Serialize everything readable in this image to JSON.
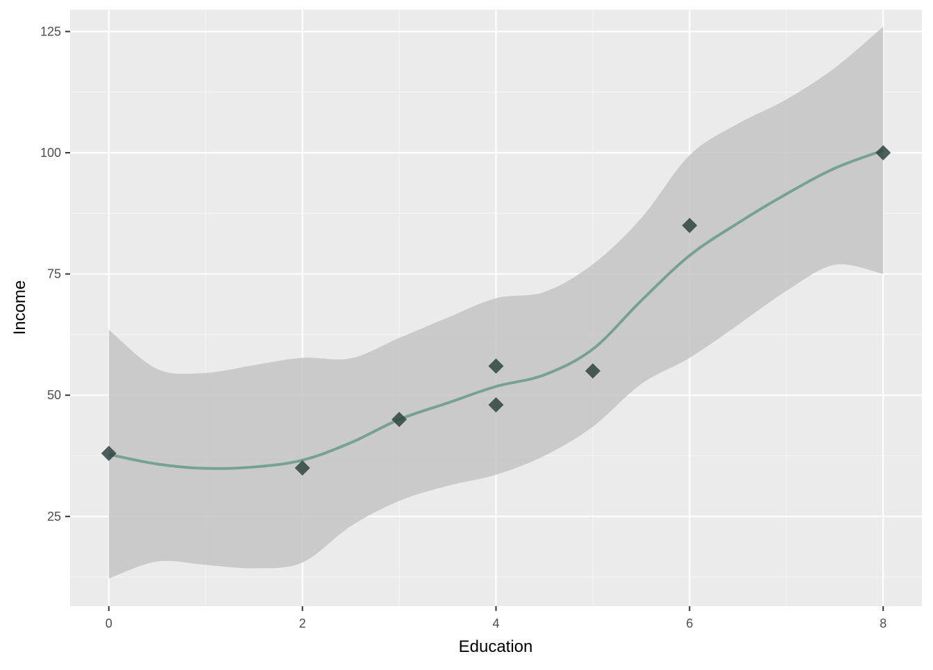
{
  "chart_data": {
    "type": "scatter",
    "xlabel": "Education",
    "ylabel": "Income",
    "xlim": [
      -0.4,
      8.4
    ],
    "ylim": [
      6.5,
      129.5
    ],
    "x_ticks": [
      0,
      2,
      4,
      6,
      8
    ],
    "x_tick_labels": [
      "0",
      "2",
      "4",
      "6",
      "8"
    ],
    "y_ticks": [
      25,
      50,
      75,
      100,
      125
    ],
    "y_tick_labels": [
      "25",
      "50",
      "75",
      "100",
      "125"
    ],
    "grid": true,
    "points": [
      {
        "x": 0,
        "y": 38
      },
      {
        "x": 2,
        "y": 35
      },
      {
        "x": 3,
        "y": 45
      },
      {
        "x": 4,
        "y": 56
      },
      {
        "x": 4,
        "y": 48
      },
      {
        "x": 5,
        "y": 55
      },
      {
        "x": 6,
        "y": 85
      },
      {
        "x": 8,
        "y": 100
      }
    ],
    "smooth": {
      "method": "loess",
      "x": [
        0,
        0.5,
        1,
        1.5,
        2,
        2.5,
        3,
        3.5,
        4,
        4.5,
        5,
        5.5,
        6,
        6.5,
        7,
        7.5,
        8
      ],
      "y": [
        37.8,
        35.8,
        34.9,
        35.2,
        36.6,
        40.2,
        45.0,
        48.4,
        51.8,
        54.2,
        59.5,
        69.5,
        78.8,
        85.5,
        91.5,
        96.8,
        100.5
      ],
      "lower": [
        12.2,
        15.7,
        15.0,
        14.3,
        15.5,
        23.0,
        28.2,
        31.3,
        33.6,
        37.5,
        43.5,
        52.3,
        57.7,
        64.5,
        71.5,
        76.9,
        75.0
      ],
      "upper": [
        63.5,
        55.4,
        54.6,
        56.2,
        57.7,
        57.6,
        61.8,
        66.0,
        70.0,
        71.3,
        77.0,
        86.5,
        99.5,
        106.0,
        111.0,
        117.5,
        126.0
      ]
    },
    "colors": {
      "panel_background": "#ebebeb",
      "grid_major": "#ffffff",
      "grid_minor": "#f5f5f5",
      "ribbon": "#c4c4c4",
      "smooth_line": "#76a193",
      "points": "#2f4440"
    }
  }
}
